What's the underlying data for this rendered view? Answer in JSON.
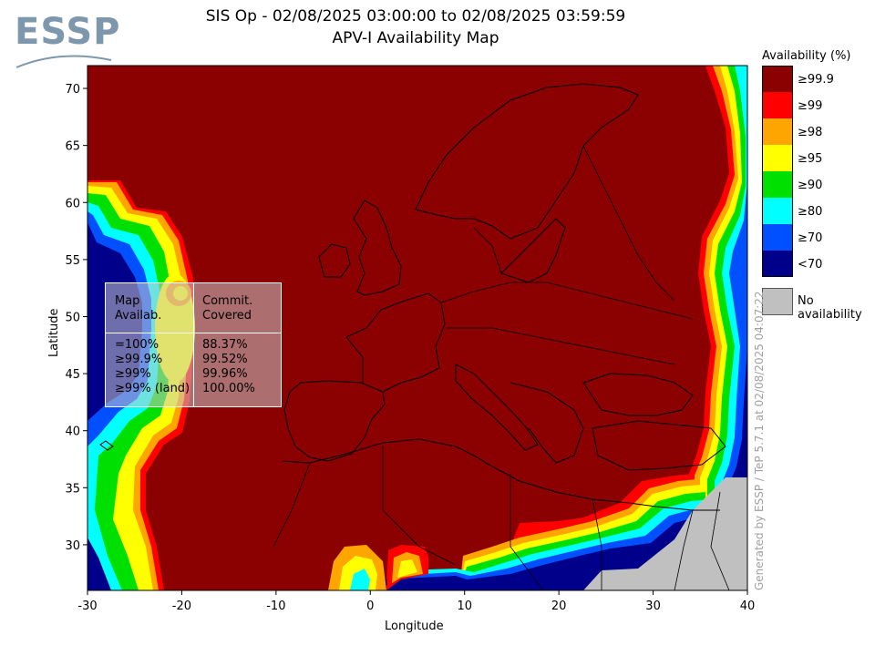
{
  "logo": {
    "text": "ESSP"
  },
  "title": {
    "line1": "SIS Op - 02/08/2025 03:00:00 to 02/08/2025 03:59:59",
    "line2": "APV-I Availability Map"
  },
  "axes": {
    "x_label": "Longitude",
    "y_label": "Latitude",
    "x_ticks": [
      "-30",
      "-20",
      "-10",
      "0",
      "10",
      "20",
      "30",
      "40"
    ],
    "y_ticks": [
      "30",
      "35",
      "40",
      "45",
      "50",
      "55",
      "60",
      "65",
      "70"
    ],
    "lon_range": [
      -30,
      40
    ],
    "lat_range": [
      26,
      72
    ]
  },
  "stats_table": {
    "header_col1": [
      "Map",
      "Availab."
    ],
    "header_col2": [
      "Commit.",
      "Covered"
    ],
    "rows": [
      {
        "label": "=100%",
        "value": "88.37%"
      },
      {
        "label": "≥99.9%",
        "value": "99.52%"
      },
      {
        "label": "≥99%",
        "value": "99.96%"
      },
      {
        "label": "≥99% (land)",
        "value": "100.00%"
      }
    ]
  },
  "legend": {
    "title": "Availability (%)",
    "items": [
      {
        "label": "≥99.9",
        "color": "#8b0000"
      },
      {
        "label": "≥99",
        "color": "#ff0000"
      },
      {
        "label": "≥98",
        "color": "#ffa500"
      },
      {
        "label": "≥95",
        "color": "#ffff00"
      },
      {
        "label": "≥90",
        "color": "#00e000"
      },
      {
        "label": "≥80",
        "color": "#00ffff"
      },
      {
        "label": "≥70",
        "color": "#0050ff"
      },
      {
        "label": "<70",
        "color": "#00008b"
      }
    ],
    "no_availability": {
      "label": "No availability",
      "color": "#c0c0c0"
    }
  },
  "credit": "Generated by ESSP / TeP 5.7.1 at 02/08/2025 04:07:22"
}
